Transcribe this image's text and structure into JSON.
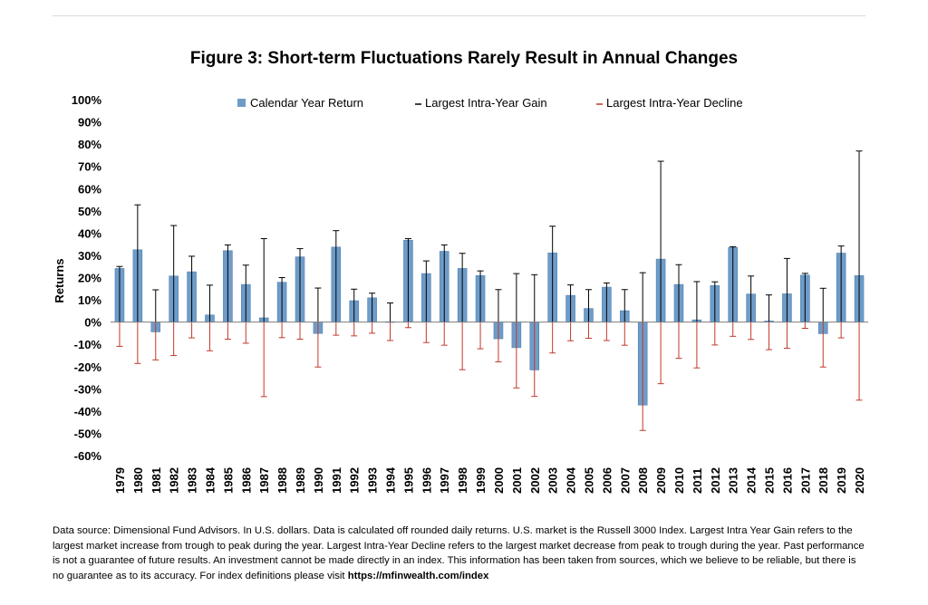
{
  "chart_data": {
    "type": "bar",
    "title": "Figure 3: Short-term Fluctuations Rarely Result in Annual Changes",
    "xlabel": "",
    "ylabel": "Returns",
    "ylim": [
      -60,
      100
    ],
    "yticks": [
      100,
      90,
      80,
      70,
      60,
      50,
      40,
      30,
      20,
      10,
      0,
      -10,
      -20,
      -30,
      -40,
      -50,
      -60
    ],
    "tick_suffix": "%",
    "legend_position": "top",
    "legend": [
      "Calendar Year Return",
      "Largest Intra-Year Gain",
      "Largest Intra-Year Decline"
    ],
    "categories": [
      "1979",
      "1980",
      "1981",
      "1982",
      "1983",
      "1984",
      "1985",
      "1986",
      "1987",
      "1988",
      "1989",
      "1990",
      "1991",
      "1992",
      "1993",
      "1994",
      "1995",
      "1996",
      "1997",
      "1998",
      "1999",
      "2000",
      "2001",
      "2002",
      "2003",
      "2004",
      "2005",
      "2006",
      "2007",
      "2008",
      "2009",
      "2010",
      "2011",
      "2012",
      "2013",
      "2014",
      "2015",
      "2016",
      "2017",
      "2018",
      "2019",
      "2020"
    ],
    "series": [
      {
        "name": "Calendar Year Return",
        "kind": "bar",
        "values": [
          24.1,
          32.5,
          -4.4,
          20.7,
          22.6,
          3.2,
          32.1,
          16.9,
          1.9,
          17.9,
          29.3,
          -5.1,
          33.7,
          9.6,
          10.9,
          0.2,
          36.8,
          21.8,
          31.8,
          24.1,
          20.9,
          -7.5,
          -11.5,
          -21.5,
          31.1,
          12.0,
          6.1,
          15.7,
          5.1,
          -37.3,
          28.3,
          16.9,
          1.0,
          16.4,
          33.6,
          12.6,
          0.5,
          12.7,
          21.1,
          -5.2,
          31.0,
          20.9
        ]
      },
      {
        "name": "Largest Intra-Year Gain",
        "kind": "whisker",
        "values": [
          25.0,
          52.7,
          14.5,
          43.4,
          29.6,
          16.6,
          34.7,
          25.6,
          37.5,
          20.0,
          33.0,
          15.3,
          41.1,
          14.8,
          13.0,
          8.6,
          37.5,
          27.5,
          34.7,
          30.9,
          23.0,
          14.6,
          21.8,
          21.3,
          43.1,
          16.7,
          14.6,
          17.6,
          14.6,
          22.2,
          72.3,
          25.8,
          18.2,
          18.1,
          33.9,
          20.7,
          12.2,
          28.6,
          21.9,
          15.2,
          34.2,
          76.9
        ]
      },
      {
        "name": "Largest Intra-Year Decline",
        "kind": "whisker",
        "values": [
          -10.9,
          -18.6,
          -17.0,
          -15.0,
          -7.1,
          -12.9,
          -7.7,
          -9.5,
          -33.5,
          -7.0,
          -7.7,
          -20.2,
          -5.9,
          -6.2,
          -5.0,
          -8.3,
          -2.5,
          -9.2,
          -10.4,
          -21.4,
          -12.0,
          -17.9,
          -29.6,
          -33.4,
          -13.9,
          -8.4,
          -7.3,
          -8.3,
          -10.4,
          -48.7,
          -27.7,
          -16.3,
          -20.6,
          -10.3,
          -6.4,
          -7.8,
          -12.4,
          -11.8,
          -2.8,
          -20.2,
          -7.1,
          -35.1
        ]
      }
    ],
    "colors": {
      "bar": "#6e9cc9",
      "bar_stroke": "#4f80b3",
      "gain": "#000000",
      "decline": "#c0392b",
      "axis": "#7f7f7f"
    }
  },
  "footnote": {
    "text": "Data source: Dimensional Fund Advisors. In U.S. dollars. Data is calculated off rounded daily returns. U.S. market is the Russell 3000 Index. Largest Intra Year Gain refers to the largest market increase from trough to peak during the year. Largest Intra-Year Decline refers to the largest market decrease from peak to trough during the year. Past performance is not a guarantee of future results. An investment cannot be made directly in an index. This information has been taken from sources, which we believe to be reliable, but there is no guarantee as to its accuracy. For index definitions please visit",
    "link": "https://mfinwealth.com/index"
  }
}
